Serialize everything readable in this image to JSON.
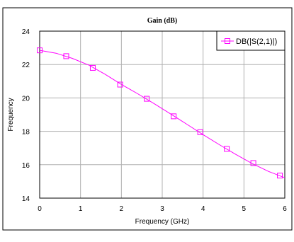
{
  "chart_data": {
    "type": "line",
    "title": "Gain (dB)",
    "xlabel": "Frequency (GHz)",
    "ylabel": "Frequency",
    "xlim": [
      0,
      6
    ],
    "ylim": [
      14,
      24
    ],
    "x_ticks": [
      "0",
      "1",
      "2",
      "3",
      "4",
      "5",
      "6"
    ],
    "y_ticks": [
      "14",
      "16",
      "18",
      "20",
      "22",
      "24"
    ],
    "grid": true,
    "legend_position": "top-right",
    "series": [
      {
        "name": "DB(|S(2,1)|)",
        "color": "#ff00ff",
        "marker": "square",
        "x": [
          0,
          0.4,
          0.8,
          1.2,
          1.6,
          2.0,
          2.4,
          2.8,
          3.2,
          3.6,
          4.0,
          4.4,
          4.8,
          5.2,
          5.6,
          6.0
        ],
        "y": [
          22.85,
          22.68,
          22.37,
          21.97,
          21.42,
          20.81,
          20.25,
          19.66,
          19.05,
          18.43,
          17.8,
          17.2,
          16.62,
          16.07,
          15.6,
          15.22
        ],
        "marker_x": [
          0,
          0.65,
          1.3,
          1.97,
          2.62,
          3.28,
          3.93,
          4.58,
          5.23,
          5.88
        ],
        "marker_y": [
          22.85,
          22.5,
          21.8,
          20.8,
          19.95,
          18.9,
          17.95,
          16.95,
          16.1,
          15.35
        ]
      }
    ]
  }
}
